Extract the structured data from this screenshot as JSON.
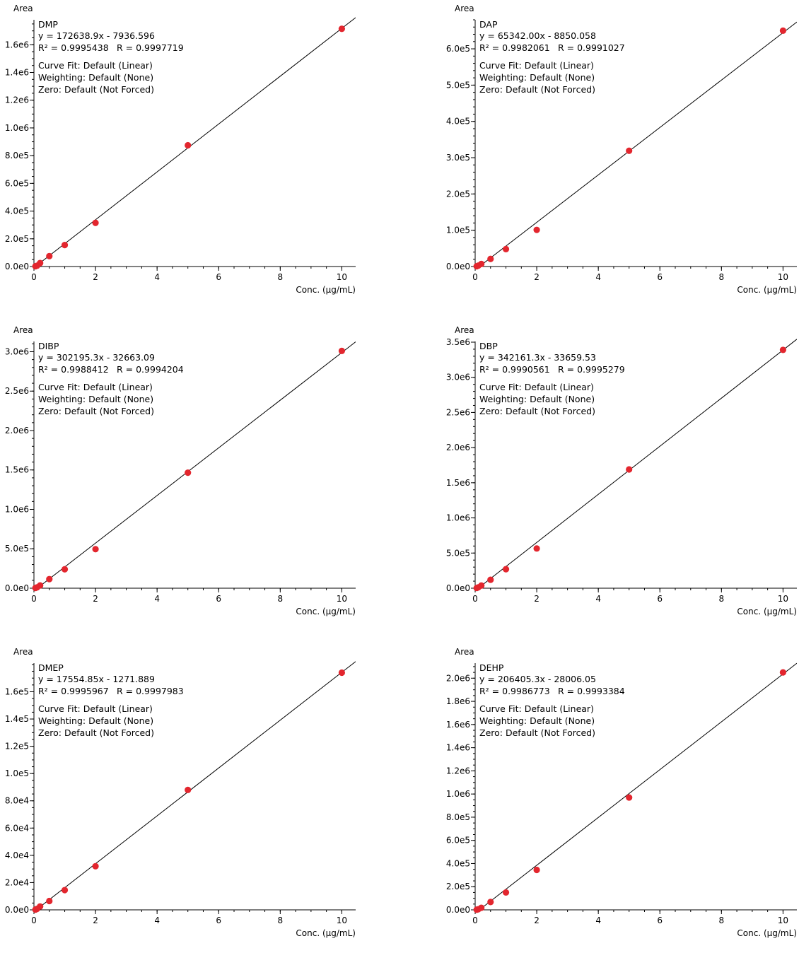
{
  "charts_layout": "3x2 grid of calibration curves",
  "chart_data": [
    {
      "type": "scatter",
      "name": "DMP",
      "ylabel": "Area",
      "xlabel": "Conc. (µg/mL)",
      "equation": "y = 172638.9x - 7936.596",
      "r2_text": "R² = 0.9995438",
      "r_text": "R = 0.9997719",
      "curve_fit": "Curve Fit: Default (Linear)",
      "weighting": "Weighting: Default (None)",
      "zero": "Zero: Default (Not Forced)",
      "fit": {
        "slope": 172638.9,
        "intercept": -7936.596
      },
      "x": [
        0.05,
        0.1,
        0.2,
        0.5,
        1,
        2,
        5,
        10
      ],
      "y": [
        2000,
        6000,
        25000,
        75000,
        155000,
        315000,
        875000,
        1715000
      ],
      "xlim": [
        0,
        10.45
      ],
      "ylim": [
        0,
        1780000
      ],
      "xticks": [
        0,
        2,
        4,
        6,
        8,
        10
      ],
      "xtick_labels": [
        "0",
        "2",
        "4",
        "6",
        "8",
        "10"
      ],
      "yticks": [
        0,
        200000,
        400000,
        600000,
        800000,
        1000000,
        1200000,
        1400000,
        1600000
      ],
      "ytick_labels": [
        "0.0e0",
        "2.0e5",
        "4.0e5",
        "6.0e5",
        "8.0e5",
        "1.0e6",
        "1.2e6",
        "1.4e6",
        "1.6e6"
      ],
      "yminor": 50000,
      "marker_color": "#e3262e",
      "line_color": "#000000"
    },
    {
      "type": "scatter",
      "name": "DAP",
      "ylabel": "Area",
      "xlabel": "Conc. (µg/mL)",
      "equation": "y = 65342.00x - 8850.058",
      "r2_text": "R² = 0.9982061",
      "r_text": "R = 0.9991027",
      "curve_fit": "Curve Fit: Default (Linear)",
      "weighting": "Weighting: Default (None)",
      "zero": "Zero: Default (Not Forced)",
      "fit": {
        "slope": 65342.0,
        "intercept": -8850.058
      },
      "x": [
        0.05,
        0.1,
        0.2,
        0.5,
        1,
        2,
        5,
        10
      ],
      "y": [
        800,
        2500,
        7000,
        21000,
        48000,
        101000,
        319000,
        650000
      ],
      "xlim": [
        0,
        10.45
      ],
      "ylim": [
        0,
        680000
      ],
      "xticks": [
        0,
        2,
        4,
        6,
        8,
        10
      ],
      "xtick_labels": [
        "0",
        "2",
        "4",
        "6",
        "8",
        "10"
      ],
      "yticks": [
        0,
        100000,
        200000,
        300000,
        400000,
        500000,
        600000
      ],
      "ytick_labels": [
        "0.0e0",
        "1.0e5",
        "2.0e5",
        "3.0e5",
        "4.0e5",
        "5.0e5",
        "6.0e5"
      ],
      "yminor": 20000,
      "marker_color": "#e3262e",
      "line_color": "#000000"
    },
    {
      "type": "scatter",
      "name": "DIBP",
      "ylabel": "Area",
      "xlabel": "Conc. (µg/mL)",
      "equation": "y = 302195.3x - 32663.09",
      "r2_text": "R² = 0.9988412",
      "r_text": "R = 0.9994204",
      "curve_fit": "Curve Fit: Default (Linear)",
      "weighting": "Weighting: Default (None)",
      "zero": "Zero: Default (Not Forced)",
      "fit": {
        "slope": 302195.3,
        "intercept": -32663.09
      },
      "x": [
        0.05,
        0.1,
        0.2,
        0.5,
        1,
        2,
        5,
        10
      ],
      "y": [
        3000,
        10000,
        35000,
        115000,
        240000,
        495000,
        1465000,
        3010000
      ],
      "xlim": [
        0,
        10.45
      ],
      "ylim": [
        0,
        3130000
      ],
      "xticks": [
        0,
        2,
        4,
        6,
        8,
        10
      ],
      "xtick_labels": [
        "0",
        "2",
        "4",
        "6",
        "8",
        "10"
      ],
      "yticks": [
        0,
        500000,
        1000000,
        1500000,
        2000000,
        2500000,
        3000000
      ],
      "ytick_labels": [
        "0.0e0",
        "5.0e5",
        "1.0e6",
        "1.5e6",
        "2.0e6",
        "2.5e6",
        "3.0e6"
      ],
      "yminor": 100000,
      "marker_color": "#e3262e",
      "line_color": "#000000"
    },
    {
      "type": "scatter",
      "name": "DBP",
      "ylabel": "Area",
      "xlabel": "Conc. (µg/mL)",
      "equation": "y = 342161.3x - 33659.53",
      "r2_text": "R² = 0.9990561",
      "r_text": "R = 0.9995279",
      "curve_fit": "Curve Fit: Default (Linear)",
      "weighting": "Weighting: Default (None)",
      "zero": "Zero: Default (Not Forced)",
      "fit": {
        "slope": 342161.3,
        "intercept": -33659.53
      },
      "x": [
        0.05,
        0.1,
        0.2,
        0.5,
        1,
        2,
        5,
        10
      ],
      "y": [
        3000,
        12000,
        38000,
        120000,
        270000,
        565000,
        1690000,
        3390000
      ],
      "xlim": [
        0,
        10.45
      ],
      "ylim": [
        0,
        3510000
      ],
      "xticks": [
        0,
        2,
        4,
        6,
        8,
        10
      ],
      "xtick_labels": [
        "0",
        "2",
        "4",
        "6",
        "8",
        "10"
      ],
      "yticks": [
        0,
        500000,
        1000000,
        1500000,
        2000000,
        2500000,
        3000000,
        3500000
      ],
      "ytick_labels": [
        "0.0e0",
        "5.0e5",
        "1.0e6",
        "1.5e6",
        "2.0e6",
        "2.5e6",
        "3.0e6",
        "3.5e6"
      ],
      "yminor": 100000,
      "marker_color": "#e3262e",
      "line_color": "#000000"
    },
    {
      "type": "scatter",
      "name": "DMEP",
      "ylabel": "Area",
      "xlabel": "Conc. (µg/mL)",
      "equation": "y = 17554.85x - 1271.889",
      "r2_text": "R² = 0.9995967",
      "r_text": "R = 0.9997983",
      "curve_fit": "Curve Fit: Default (Linear)",
      "weighting": "Weighting: Default (None)",
      "zero": "Zero: Default (Not Forced)",
      "fit": {
        "slope": 17554.85,
        "intercept": -1271.889
      },
      "x": [
        0.05,
        0.1,
        0.2,
        0.5,
        1,
        2,
        5,
        10
      ],
      "y": [
        200,
        700,
        2500,
        6500,
        14500,
        32000,
        88000,
        174000
      ],
      "xlim": [
        0,
        10.45
      ],
      "ylim": [
        0,
        181000
      ],
      "xticks": [
        0,
        2,
        4,
        6,
        8,
        10
      ],
      "xtick_labels": [
        "0",
        "2",
        "4",
        "6",
        "8",
        "10"
      ],
      "yticks": [
        0,
        20000,
        40000,
        60000,
        80000,
        100000,
        120000,
        140000,
        160000
      ],
      "ytick_labels": [
        "0.0e0",
        "2.0e4",
        "4.0e4",
        "6.0e4",
        "8.0e4",
        "1.0e5",
        "1.2e5",
        "1.4e5",
        "1.6e5"
      ],
      "yminor": 5000,
      "marker_color": "#e3262e",
      "line_color": "#000000"
    },
    {
      "type": "scatter",
      "name": "DEHP",
      "ylabel": "Area",
      "xlabel": "Conc. (µg/mL)",
      "equation": "y = 206405.3x - 28006.05",
      "r2_text": "R² = 0.9986773",
      "r_text": "R = 0.9993384",
      "curve_fit": "Curve Fit: Default (Linear)",
      "weighting": "Weighting: Default (None)",
      "zero": "Zero: Default (Not Forced)",
      "fit": {
        "slope": 206405.3,
        "intercept": -28006.05
      },
      "x": [
        0.05,
        0.1,
        0.2,
        0.5,
        1,
        2,
        5,
        10
      ],
      "y": [
        1500,
        5000,
        18000,
        68000,
        150000,
        345000,
        970000,
        2050000
      ],
      "xlim": [
        0,
        10.45
      ],
      "ylim": [
        0,
        2130000
      ],
      "xticks": [
        0,
        2,
        4,
        6,
        8,
        10
      ],
      "xtick_labels": [
        "0",
        "2",
        "4",
        "6",
        "8",
        "10"
      ],
      "yticks": [
        0,
        200000,
        400000,
        600000,
        800000,
        1000000,
        1200000,
        1400000,
        1600000,
        1800000,
        2000000
      ],
      "ytick_labels": [
        "0.0e0",
        "2.0e5",
        "4.0e5",
        "6.0e5",
        "8.0e5",
        "1.0e6",
        "1.2e6",
        "1.4e6",
        "1.6e6",
        "1.8e6",
        "2.0e6"
      ],
      "yminor": 50000,
      "marker_color": "#e3262e",
      "line_color": "#000000"
    }
  ]
}
